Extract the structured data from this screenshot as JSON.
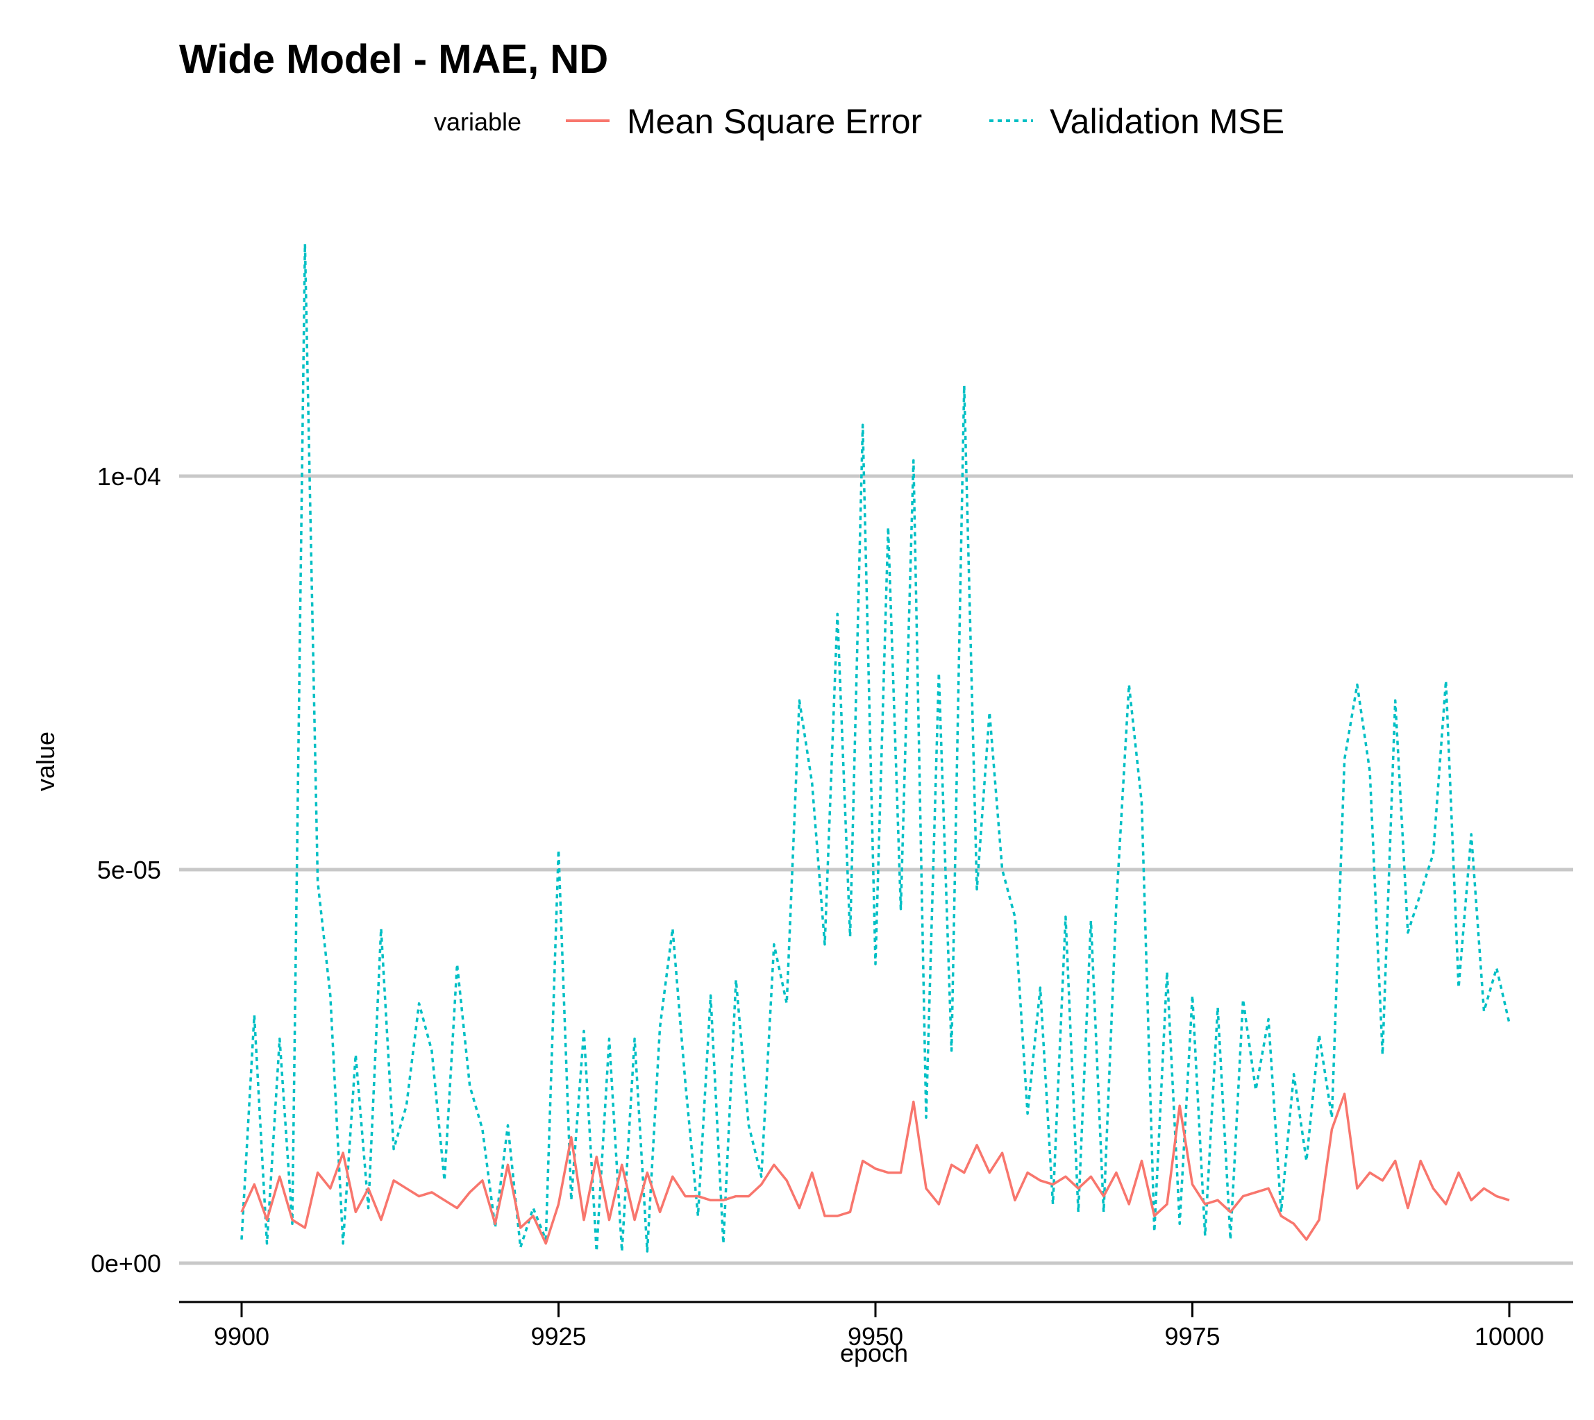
{
  "chart_data": {
    "type": "line",
    "title": "Wide Model - MAE, ND",
    "xlabel": "epoch",
    "ylabel": "value",
    "xlim": [
      9900,
      10000
    ],
    "ylim": [
      0,
      0.000132
    ],
    "x_ticks": [
      9900,
      9925,
      9950,
      9975,
      10000
    ],
    "x_tick_labels": [
      "9900",
      "9925",
      "9950",
      "9975",
      "10000"
    ],
    "y_ticks": [
      0,
      5e-05,
      0.0001
    ],
    "y_tick_labels": [
      "0e+00",
      "5e-05",
      "1e-04"
    ],
    "grid": "horizontal major",
    "legend": {
      "title": "variable",
      "position": "top",
      "entries": [
        "Mean Square Error",
        "Validation MSE"
      ]
    },
    "x_start": 9900,
    "x_step": 1,
    "series": [
      {
        "name": "Mean Square Error",
        "color": "#F8766D",
        "dash": "solid",
        "values": [
          6.5e-06,
          1e-05,
          5.5e-06,
          1.1e-05,
          5.5e-06,
          4.5e-06,
          1.15e-05,
          9.5e-06,
          1.4e-05,
          6.5e-06,
          9.5e-06,
          5.5e-06,
          1.05e-05,
          9.5e-06,
          8.5e-06,
          9e-06,
          8e-06,
          7e-06,
          9e-06,
          1.05e-05,
          5e-06,
          1.25e-05,
          4.5e-06,
          6e-06,
          2.5e-06,
          7.5e-06,
          1.6e-05,
          5.5e-06,
          1.35e-05,
          5.5e-06,
          1.25e-05,
          5.5e-06,
          1.15e-05,
          6.5e-06,
          1.1e-05,
          8.5e-06,
          8.5e-06,
          8e-06,
          8e-06,
          8.5e-06,
          8.5e-06,
          1e-05,
          1.25e-05,
          1.05e-05,
          7e-06,
          1.15e-05,
          6e-06,
          6e-06,
          6.5e-06,
          1.3e-05,
          1.2e-05,
          1.15e-05,
          1.15e-05,
          2.05e-05,
          9.5e-06,
          7.5e-06,
          1.25e-05,
          1.15e-05,
          1.5e-05,
          1.15e-05,
          1.4e-05,
          8e-06,
          1.15e-05,
          1.05e-05,
          1e-05,
          1.1e-05,
          9.5e-06,
          1.1e-05,
          8.5e-06,
          1.15e-05,
          7.5e-06,
          1.3e-05,
          6e-06,
          7.5e-06,
          2e-05,
          1e-05,
          7.5e-06,
          8e-06,
          6.5e-06,
          8.5e-06,
          9e-06,
          9.5e-06,
          6e-06,
          5e-06,
          3e-06,
          5.5e-06,
          1.7e-05,
          2.15e-05,
          9.5e-06,
          1.15e-05,
          1.05e-05,
          1.3e-05,
          7e-06,
          1.3e-05,
          9.5e-06,
          7.5e-06,
          1.15e-05,
          8e-06,
          9.5e-06,
          8.5e-06,
          8e-06
        ]
      },
      {
        "name": "Validation MSE",
        "color": "#00BFC4",
        "dash": "dashed",
        "values": [
          3e-06,
          3.15e-05,
          2.5e-06,
          2.85e-05,
          5e-06,
          0.0001295,
          4.85e-05,
          3.4e-05,
          2.5e-06,
          2.65e-05,
          7e-06,
          4.25e-05,
          1.45e-05,
          2e-05,
          3.3e-05,
          2.7e-05,
          1.05e-05,
          3.8e-05,
          2.25e-05,
          1.7e-05,
          4.5e-06,
          1.75e-05,
          2e-06,
          7e-06,
          3e-06,
          5.25e-05,
          8e-06,
          2.95e-05,
          1.5e-06,
          2.85e-05,
          1.5e-06,
          2.85e-05,
          1.5e-06,
          3e-05,
          4.25e-05,
          2.3e-05,
          6e-06,
          3.4e-05,
          2.5e-06,
          3.6e-05,
          1.75e-05,
          1.1e-05,
          4.05e-05,
          3.3e-05,
          7.15e-05,
          6.1e-05,
          4.05e-05,
          8.25e-05,
          4.15e-05,
          0.0001065,
          3.8e-05,
          9.35e-05,
          4.5e-05,
          0.000102,
          1.85e-05,
          7.5e-05,
          2.7e-05,
          0.0001115,
          4.75e-05,
          7e-05,
          5e-05,
          4.4e-05,
          1.9e-05,
          3.5e-05,
          7.5e-06,
          4.4e-05,
          6.5e-06,
          4.35e-05,
          6.5e-06,
          4.55e-05,
          7.35e-05,
          5.85e-05,
          4e-06,
          3.7e-05,
          5e-06,
          3.4e-05,
          3.5e-06,
          3.25e-05,
          3e-06,
          3.35e-05,
          2.2e-05,
          3.1e-05,
          6.5e-06,
          2.4e-05,
          1.3e-05,
          2.9e-05,
          1.85e-05,
          6.4e-05,
          7.35e-05,
          6.25e-05,
          2.65e-05,
          7.15e-05,
          4.2e-05,
          4.7e-05,
          5.2e-05,
          7.4e-05,
          3.5e-05,
          5.45e-05,
          3.2e-05,
          3.75e-05,
          3.05e-05
        ]
      }
    ]
  }
}
